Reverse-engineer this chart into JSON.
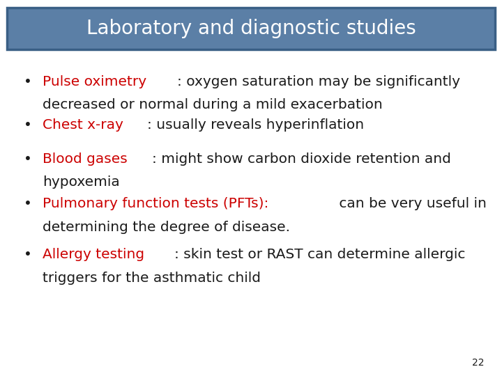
{
  "title": "Laboratory and diagnostic studies",
  "title_bg_color": "#5b7fa6",
  "title_border_color": "#3a5f85",
  "title_text_color": "#ffffff",
  "background_color": "#ffffff",
  "red_color": "#cc0000",
  "black_color": "#1a1a1a",
  "bullet_color": "#1a1a1a",
  "page_number": "22",
  "title_fontsize": 20,
  "body_fontsize": 14.5,
  "bullets": [
    {
      "label": "Pulse oximetry",
      "label_color": "#cc0000",
      "line1_rest": ": oxygen saturation may be significantly",
      "line2": "decreased or normal during a mild exacerbation",
      "text_color": "#1a1a1a"
    },
    {
      "label": "Chest x-ray",
      "label_color": "#cc0000",
      "line1_rest": ": usually reveals hyperinflation",
      "line2": "",
      "text_color": "#1a1a1a"
    },
    {
      "label": "Blood gases",
      "label_color": "#cc0000",
      "line1_rest": ": might show carbon dioxide retention and",
      "line2": "hypoxemia",
      "text_color": "#1a1a1a"
    },
    {
      "label": "Pulmonary function tests (PFTs):",
      "label_color": "#cc0000",
      "line1_rest": " can be very useful in",
      "line2": "determining the degree of disease.",
      "text_color": "#1a1a1a"
    },
    {
      "label": "Allergy testing",
      "label_color": "#cc0000",
      "line1_rest": ": skin test or RAST can determine allergic",
      "line2": "triggers for the asthmatic child",
      "text_color": "#1a1a1a"
    }
  ]
}
